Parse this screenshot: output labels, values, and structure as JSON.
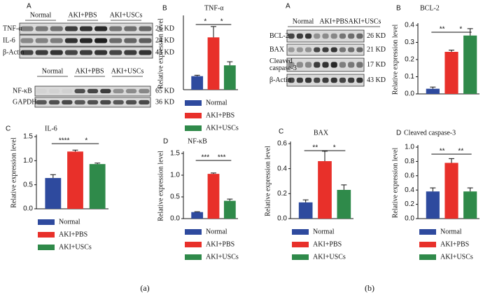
{
  "chart_data": [
    {
      "type": "bar",
      "panel": "B",
      "title": "TNF-α",
      "ylabel": "Relative expression level",
      "categories": [
        "Normal",
        "AKI+PBS",
        "AKI+USCs"
      ],
      "colors": [
        "#2e4a9e",
        "#e8302a",
        "#2f8a4a"
      ],
      "values": [
        0.15,
        0.58,
        0.27
      ],
      "errors": [
        0.01,
        0.12,
        0.04
      ],
      "significance": [
        "*",
        "*"
      ],
      "ylim": [
        0,
        0.8
      ]
    },
    {
      "type": "bar",
      "panel": "C",
      "title": "IL-6",
      "ylabel": "Relative expression level",
      "categories": [
        "Normal",
        "AKI+PBS",
        "AKI+USCs"
      ],
      "colors": [
        "#2e4a9e",
        "#e8302a",
        "#2f8a4a"
      ],
      "values": [
        0.64,
        1.19,
        0.93
      ],
      "errors": [
        0.07,
        0.03,
        0.02
      ],
      "significance": [
        "****",
        "*"
      ],
      "ylim": [
        0,
        1.5
      ],
      "yticks": [
        {
          "value": 0,
          "label": "0.0"
        },
        0.5,
        {
          "value": 1,
          "label": "1.0"
        },
        1.5
      ]
    },
    {
      "type": "bar",
      "panel": "D",
      "title": "NF-κB",
      "ylabel": "Relative expression level",
      "categories": [
        "Normal",
        "AKI+PBS",
        "AKI+USCs"
      ],
      "colors": [
        "#2e4a9e",
        "#e8302a",
        "#2f8a4a"
      ],
      "values": [
        0.15,
        1.03,
        0.41
      ],
      "errors": [
        0.01,
        0.02,
        0.04
      ],
      "significance": [
        "***",
        "***"
      ],
      "ylim": [
        0,
        1.5
      ],
      "yticks": [
        {
          "value": 0,
          "label": "0.0"
        },
        0.5,
        {
          "value": 1,
          "label": "1.0"
        },
        1.5
      ]
    },
    {
      "type": "bar",
      "panel": "C",
      "title": "BAX",
      "ylabel": "Relative expression level",
      "categories": [
        "Normal",
        "AKI+PBS",
        "AKI+USCs"
      ],
      "colors": [
        "#2e4a9e",
        "#e8302a",
        "#2f8a4a"
      ],
      "values": [
        0.13,
        0.46,
        0.23
      ],
      "errors": [
        0.02,
        0.08,
        0.04
      ],
      "significance": [
        "**",
        "*"
      ],
      "ylim": [
        0,
        0.6
      ],
      "yticks": [
        {
          "value": 0,
          "label": "0.0"
        },
        0.2,
        0.4,
        0.6
      ]
    },
    {
      "type": "bar",
      "panel": "B",
      "title": "BCL-2",
      "ylabel": "Relative expression level",
      "colors": [
        "#2e4a9e",
        "#e8302a",
        "#2f8a4a"
      ],
      "values": [
        0.03,
        0.245,
        0.34
      ],
      "errors": [
        0.01,
        0.01,
        0.04
      ],
      "significance": [
        "**",
        "*"
      ],
      "ylim": [
        0,
        0.4
      ],
      "yticks": [
        {
          "value": 0,
          "label": "0.0"
        },
        0.1,
        0.2,
        0.3,
        0.4
      ]
    },
    {
      "type": "bar",
      "panel": "D",
      "title": "Cleaved caspase-3",
      "ylabel": "Relative expression level",
      "categories": [
        "Normal",
        "AKI+PBS",
        "AKI+USCs"
      ],
      "colors": [
        "#2e4a9e",
        "#e8302a",
        "#2f8a4a"
      ],
      "values": [
        0.38,
        0.78,
        0.38
      ],
      "errors": [
        0.05,
        0.06,
        0.05
      ],
      "significance": [
        "**",
        "**"
      ],
      "ylim": [
        0,
        1
      ],
      "yticks": [
        {
          "value": 0,
          "label": "0.0"
        },
        0.2,
        0.4,
        0.6,
        0.8,
        {
          "value": 1,
          "label": "1.0"
        }
      ]
    }
  ],
  "blots": [
    {
      "panel": "A",
      "groups": [
        "Normal",
        "AKI+PBS",
        "AKI+USCs"
      ],
      "rows": [
        {
          "label": "TNF-α",
          "size": "26 KD"
        },
        {
          "label": "IL-6",
          "size": "24 KD"
        },
        {
          "label": "β-Actin",
          "size": "43 KD"
        }
      ]
    },
    {
      "groups": [
        "Normal",
        "AKI+PBS",
        "AKI+USCs"
      ],
      "rows": [
        {
          "label": "NF-κB",
          "size": "65 KD"
        },
        {
          "label": "GAPDH",
          "size": "36 KD"
        }
      ]
    },
    {
      "panel": "A",
      "groups": [
        "Normal",
        "AKI+PBS",
        "AKI+USCs"
      ],
      "rows": [
        {
          "label": "BCL-2",
          "size": "26 KD"
        },
        {
          "label": "BAX",
          "size": "21 KD"
        },
        {
          "label": [
            "Cleaved",
            "caspase-3"
          ],
          "size": "17 KD"
        },
        {
          "label": "β-Actin",
          "size": "43 KD"
        }
      ]
    }
  ],
  "subfigures": [
    "(a)",
    "(b)"
  ]
}
